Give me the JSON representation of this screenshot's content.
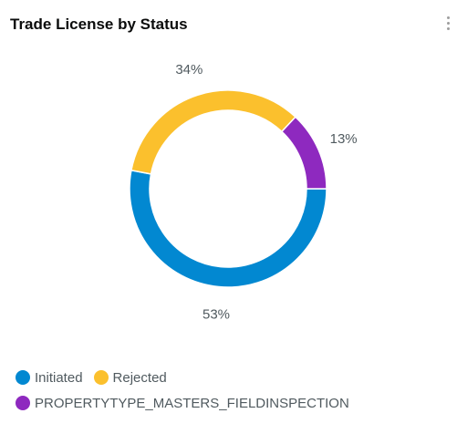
{
  "header": {
    "title": "Trade License by Status",
    "menu_icon": "more-vertical-icon"
  },
  "chart_data": {
    "type": "pie",
    "variant": "donut",
    "title": "Trade License by Status",
    "categories": [
      "Initiated",
      "Rejected",
      "PROPERTYTYPE_MASTERS_FIELDINSPECTION"
    ],
    "values": [
      53,
      34,
      13
    ],
    "value_labels": [
      "53%",
      "34%",
      "13%"
    ],
    "colors": [
      "#0288d1",
      "#fbc02d",
      "#8e29bf"
    ],
    "legend_position": "bottom-left",
    "start_angle_deg": 90,
    "direction": "clockwise"
  }
}
